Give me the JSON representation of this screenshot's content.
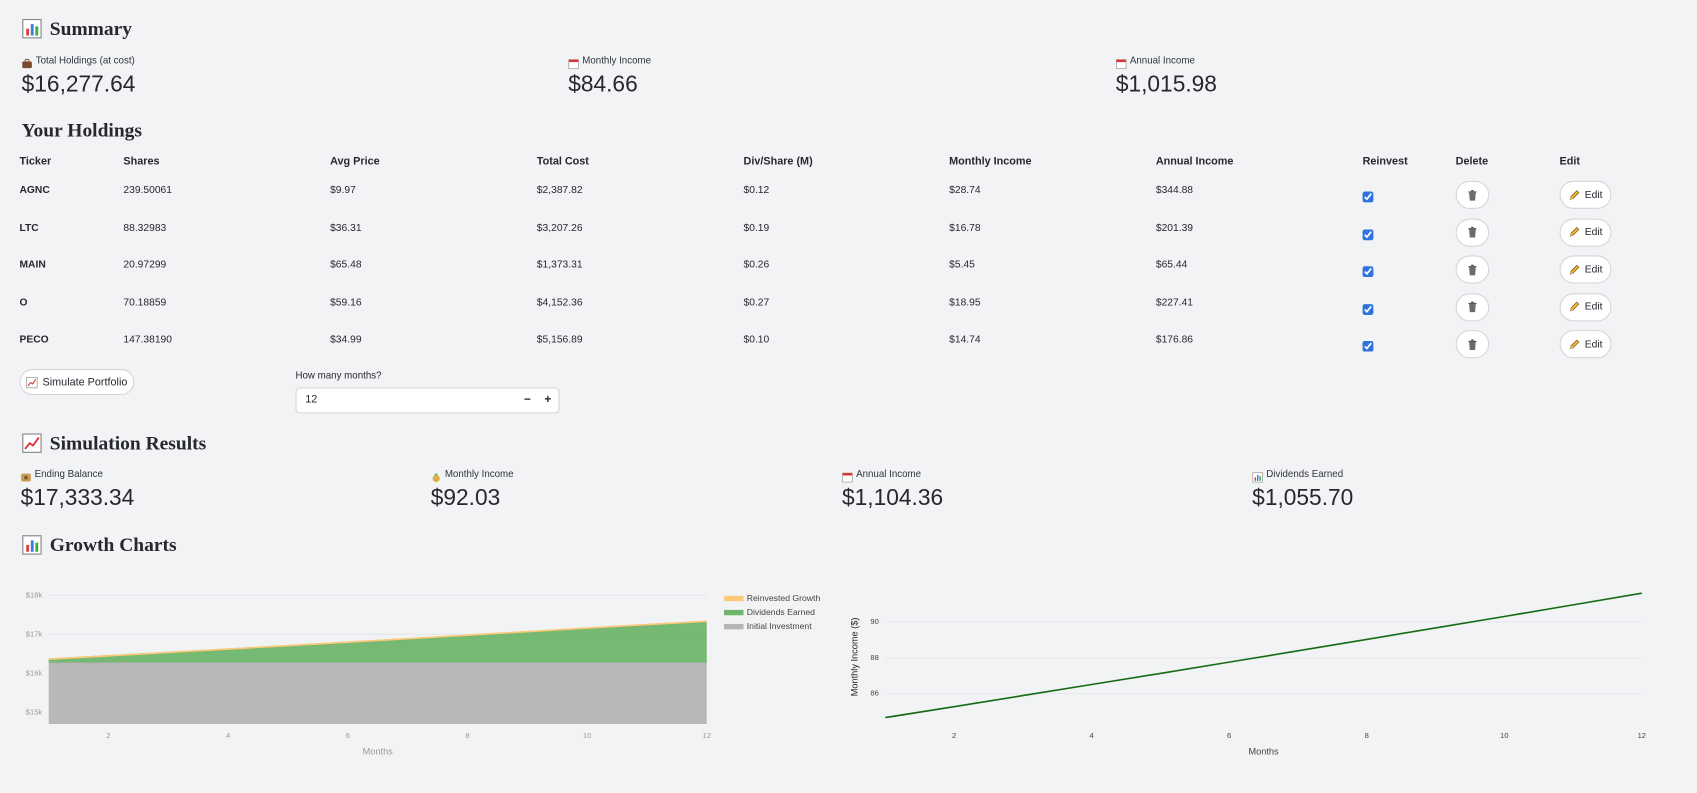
{
  "summary": {
    "title": "Summary",
    "metrics": [
      {
        "label": "Total Holdings (at cost)",
        "value": "$16,277.64"
      },
      {
        "label": "Monthly Income",
        "value": "$84.66"
      },
      {
        "label": "Annual Income",
        "value": "$1,015.98"
      }
    ]
  },
  "holdings": {
    "title": "Your Holdings",
    "columns": [
      "Ticker",
      "Shares",
      "Avg Price",
      "Total Cost",
      "Div/Share (M)",
      "Monthly Income",
      "Annual Income",
      "Reinvest",
      "Delete",
      "Edit"
    ],
    "rows": [
      [
        "AGNC",
        "239.50061",
        "$9.97",
        "$2,387.82",
        "$0.12",
        "$28.74",
        "$344.88"
      ],
      [
        "LTC",
        "88.32983",
        "$36.31",
        "$3,207.26",
        "$0.19",
        "$16.78",
        "$201.39"
      ],
      [
        "MAIN",
        "20.97299",
        "$65.48",
        "$1,373.31",
        "$0.26",
        "$5.45",
        "$65.44"
      ],
      [
        "O",
        "70.18859",
        "$59.16",
        "$4,152.36",
        "$0.27",
        "$18.95",
        "$227.41"
      ],
      [
        "PECO",
        "147.38190",
        "$34.99",
        "$5,156.89",
        "$0.10",
        "$14.74",
        "$176.86"
      ]
    ],
    "reinvest": [
      true,
      true,
      true,
      true,
      true
    ],
    "edit_button": "Edit"
  },
  "simulate": {
    "button": "Simulate Portfolio",
    "months_label": "How many months?",
    "months": 12,
    "decrement": "−",
    "increment": "+"
  },
  "results": {
    "title": "Simulation Results",
    "metrics": [
      {
        "label": "Ending Balance",
        "value": "$17,333.34"
      },
      {
        "label": "Monthly Income",
        "value": "$92.03"
      },
      {
        "label": "Annual Income",
        "value": "$1,104.36"
      },
      {
        "label": "Dividends Earned",
        "value": "$1,055.70"
      }
    ]
  },
  "growth": {
    "title": "Growth Charts"
  },
  "chart_data": [
    {
      "type": "area",
      "stacked": true,
      "x_label": "Months",
      "x": [
        1,
        2,
        3,
        4,
        5,
        6,
        7,
        8,
        9,
        10,
        11,
        12
      ],
      "series": [
        {
          "name": "Reinvested Growth",
          "color": "#fcc978",
          "values": [
            0,
            0.5,
            1.3,
            2.1,
            3.1,
            4.1,
            5.3,
            6.5,
            7.8,
            9.2,
            10.6,
            12.1
          ]
        },
        {
          "name": "Dividends Earned",
          "color": "#6fb56c",
          "values": [
            84.66,
            169.8,
            255.5,
            341.8,
            428.7,
            516.2,
            604.3,
            693.0,
            782.3,
            872.2,
            962.7,
            1043.6
          ]
        },
        {
          "name": "Initial Investment",
          "color": "#b4b4b6",
          "values": [
            16277.64,
            16277.64,
            16277.64,
            16277.64,
            16277.64,
            16277.64,
            16277.64,
            16277.64,
            16277.64,
            16277.64,
            16277.64,
            16277.64
          ]
        }
      ],
      "xlim": [
        1,
        12
      ],
      "xticks": [
        2,
        4,
        6,
        8,
        10,
        12
      ],
      "ylim": [
        14700,
        18140
      ],
      "yticks": [
        {
          "value": 15000,
          "label": "$15k"
        },
        {
          "value": 16000,
          "label": "$16k"
        },
        {
          "value": 17000,
          "label": "$17k"
        },
        {
          "value": 18000,
          "label": "$18k"
        }
      ],
      "grid": true,
      "legend": "right"
    },
    {
      "type": "line",
      "x_label": "Months",
      "y_label": "Monthly Income ($)",
      "x": [
        1,
        2,
        3,
        4,
        5,
        6,
        7,
        8,
        9,
        10,
        11,
        12
      ],
      "values": [
        84.66,
        85.27,
        85.89,
        86.51,
        87.13,
        87.76,
        88.39,
        89.03,
        89.67,
        90.31,
        90.96,
        91.61
      ],
      "color": "#146b14",
      "xlim": [
        1,
        12
      ],
      "xticks": [
        2,
        4,
        6,
        8,
        10,
        12
      ],
      "ylim": [
        84.3,
        91.8
      ],
      "yticks": [
        86,
        88,
        90
      ],
      "grid": true
    }
  ]
}
